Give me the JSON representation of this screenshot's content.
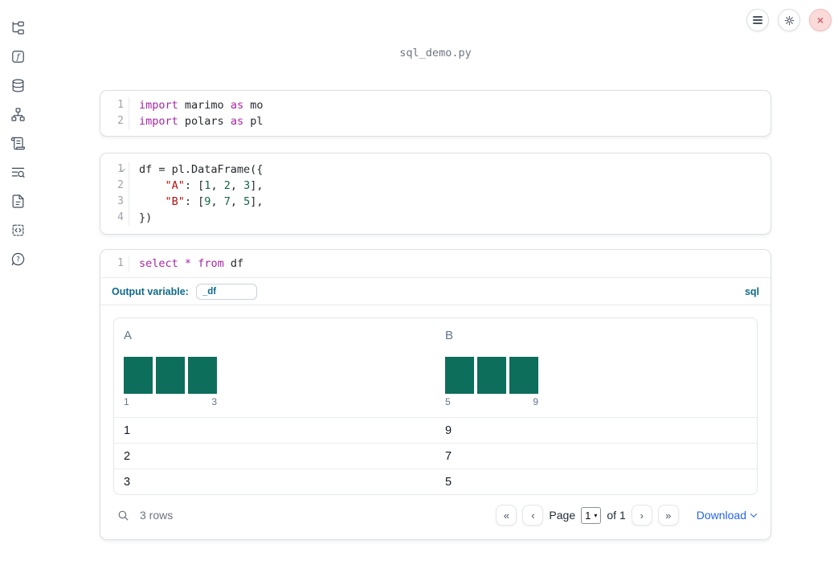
{
  "app": {
    "title": "sql_demo.py"
  },
  "header": {
    "close_glyph": "×"
  },
  "sidebar": {
    "items": [
      {
        "icon": "file-tree-icon"
      },
      {
        "icon": "function-icon"
      },
      {
        "icon": "database-icon"
      },
      {
        "icon": "dependency-graph-icon"
      },
      {
        "icon": "scroll-icon"
      },
      {
        "icon": "list-search-icon"
      },
      {
        "icon": "document-icon"
      },
      {
        "icon": "code-snippet-icon"
      },
      {
        "icon": "help-icon"
      }
    ]
  },
  "cells": [
    {
      "type": "python",
      "lines": [
        {
          "num": "1",
          "tokens": [
            [
              "kw",
              "import"
            ],
            [
              "pl",
              " marimo "
            ],
            [
              "kw",
              "as"
            ],
            [
              "pl",
              " mo"
            ]
          ]
        },
        {
          "num": "2",
          "tokens": [
            [
              "kw",
              "import"
            ],
            [
              "pl",
              " polars "
            ],
            [
              "kw",
              "as"
            ],
            [
              "pl",
              " pl"
            ]
          ]
        }
      ]
    },
    {
      "type": "python",
      "lines": [
        {
          "num": "1",
          "fold": true,
          "tokens": [
            [
              "pl",
              "df = pl.DataFrame({"
            ]
          ]
        },
        {
          "num": "2",
          "tokens": [
            [
              "pl",
              "    "
            ],
            [
              "str",
              "\"A\""
            ],
            [
              "pl",
              ": ["
            ],
            [
              "num",
              "1"
            ],
            [
              "pl",
              ", "
            ],
            [
              "num",
              "2"
            ],
            [
              "pl",
              ", "
            ],
            [
              "num",
              "3"
            ],
            [
              "pl",
              "],"
            ]
          ]
        },
        {
          "num": "3",
          "tokens": [
            [
              "pl",
              "    "
            ],
            [
              "str",
              "\"B\""
            ],
            [
              "pl",
              ": ["
            ],
            [
              "num",
              "9"
            ],
            [
              "pl",
              ", "
            ],
            [
              "num",
              "7"
            ],
            [
              "pl",
              ", "
            ],
            [
              "num",
              "5"
            ],
            [
              "pl",
              "],"
            ]
          ]
        },
        {
          "num": "4",
          "tokens": [
            [
              "pl",
              "})"
            ]
          ]
        }
      ]
    },
    {
      "type": "sql",
      "lines": [
        {
          "num": "1",
          "tokens": [
            [
              "kw",
              "select"
            ],
            [
              "pl",
              " "
            ],
            [
              "kw",
              "*"
            ],
            [
              "pl",
              " "
            ],
            [
              "kw",
              "from"
            ],
            [
              "pl",
              " df"
            ]
          ]
        }
      ],
      "output_variable_label": "Output variable:",
      "output_variable_value": "_df",
      "language_badge": "sql"
    }
  ],
  "output_table": {
    "columns": [
      {
        "name": "A",
        "bars": [
          1,
          1,
          1
        ],
        "axis_min": "1",
        "axis_max": "3"
      },
      {
        "name": "B",
        "bars": [
          1,
          1,
          1
        ],
        "axis_min": "5",
        "axis_max": "9"
      }
    ],
    "rows": [
      [
        "1",
        "9"
      ],
      [
        "2",
        "7"
      ],
      [
        "3",
        "5"
      ]
    ],
    "footer": {
      "rows_label": "3 rows",
      "page_label": "Page",
      "page_value": "1",
      "of_label": "of 1",
      "download_label": "Download",
      "first_glyph": "«",
      "prev_glyph": "‹",
      "next_glyph": "›",
      "last_glyph": "»",
      "select_chevron": "▾"
    }
  },
  "colors": {
    "bar_teal": "#0d6e5c",
    "keyword_purple": "#a626a4",
    "string_red": "#b01111",
    "number_green": "#116644",
    "sql_accent_blue": "#0e6a8b",
    "link_blue": "#2563eb",
    "close_red": "#cb6565",
    "close_bg_pink": "#fbdada"
  }
}
